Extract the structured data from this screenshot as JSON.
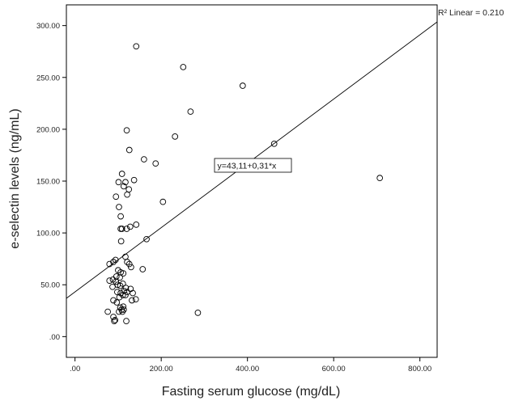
{
  "chart_data": {
    "type": "scatter",
    "title": "",
    "xlabel": "Fasting serum glucose (mg/dL)",
    "ylabel": "e-selectin levels (ng/mL)",
    "xlim": [
      -20,
      840
    ],
    "ylim": [
      -20,
      320
    ],
    "x_ticks": [
      0,
      200,
      400,
      600,
      800
    ],
    "x_tick_labels": [
      ".00",
      "200.00",
      "400.00",
      "600.00",
      "800.00"
    ],
    "y_ticks": [
      0,
      50,
      100,
      150,
      200,
      250,
      300
    ],
    "y_tick_labels": [
      ".00",
      "50.00",
      "100.00",
      "150.00",
      "200.00",
      "250.00",
      "300.00"
    ],
    "grid": false,
    "r2_label": "R² Linear = 0.210",
    "equation_label": "y=43,11+0,31*x",
    "fit_line": {
      "intercept": 43.11,
      "slope": 0.31
    },
    "points": [
      {
        "x": 142,
        "y": 280
      },
      {
        "x": 251,
        "y": 260
      },
      {
        "x": 389,
        "y": 242
      },
      {
        "x": 268,
        "y": 217
      },
      {
        "x": 120,
        "y": 199
      },
      {
        "x": 232,
        "y": 193
      },
      {
        "x": 462,
        "y": 186
      },
      {
        "x": 126,
        "y": 180
      },
      {
        "x": 160,
        "y": 171
      },
      {
        "x": 187,
        "y": 167
      },
      {
        "x": 109,
        "y": 157
      },
      {
        "x": 137,
        "y": 151
      },
      {
        "x": 101,
        "y": 149
      },
      {
        "x": 117,
        "y": 149
      },
      {
        "x": 707,
        "y": 153
      },
      {
        "x": 113,
        "y": 145
      },
      {
        "x": 125,
        "y": 142
      },
      {
        "x": 95,
        "y": 135
      },
      {
        "x": 121,
        "y": 137
      },
      {
        "x": 204,
        "y": 130
      },
      {
        "x": 102,
        "y": 125
      },
      {
        "x": 106,
        "y": 116
      },
      {
        "x": 142,
        "y": 108
      },
      {
        "x": 128,
        "y": 106
      },
      {
        "x": 120,
        "y": 104
      },
      {
        "x": 109,
        "y": 104
      },
      {
        "x": 106,
        "y": 104
      },
      {
        "x": 166,
        "y": 94
      },
      {
        "x": 107,
        "y": 92
      },
      {
        "x": 117,
        "y": 77
      },
      {
        "x": 94,
        "y": 74
      },
      {
        "x": 121,
        "y": 72
      },
      {
        "x": 89,
        "y": 72
      },
      {
        "x": 126,
        "y": 70
      },
      {
        "x": 80,
        "y": 70
      },
      {
        "x": 130,
        "y": 67
      },
      {
        "x": 157,
        "y": 65
      },
      {
        "x": 100,
        "y": 64
      },
      {
        "x": 106,
        "y": 62
      },
      {
        "x": 112,
        "y": 61
      },
      {
        "x": 96,
        "y": 58
      },
      {
        "x": 104,
        "y": 57
      },
      {
        "x": 88,
        "y": 55
      },
      {
        "x": 80,
        "y": 54
      },
      {
        "x": 95,
        "y": 53
      },
      {
        "x": 111,
        "y": 51
      },
      {
        "x": 99,
        "y": 50
      },
      {
        "x": 105,
        "y": 49
      },
      {
        "x": 87,
        "y": 48
      },
      {
        "x": 118,
        "y": 47
      },
      {
        "x": 129,
        "y": 46
      },
      {
        "x": 114,
        "y": 44
      },
      {
        "x": 98,
        "y": 43
      },
      {
        "x": 121,
        "y": 43
      },
      {
        "x": 106,
        "y": 42
      },
      {
        "x": 134,
        "y": 42
      },
      {
        "x": 111,
        "y": 40
      },
      {
        "x": 117,
        "y": 40
      },
      {
        "x": 103,
        "y": 38
      },
      {
        "x": 89,
        "y": 35
      },
      {
        "x": 132,
        "y": 35
      },
      {
        "x": 141,
        "y": 36
      },
      {
        "x": 97,
        "y": 33
      },
      {
        "x": 112,
        "y": 29
      },
      {
        "x": 105,
        "y": 28
      },
      {
        "x": 108,
        "y": 26
      },
      {
        "x": 113,
        "y": 26
      },
      {
        "x": 102,
        "y": 24
      },
      {
        "x": 110,
        "y": 24
      },
      {
        "x": 76,
        "y": 24
      },
      {
        "x": 285,
        "y": 23
      },
      {
        "x": 89,
        "y": 19
      },
      {
        "x": 93,
        "y": 16
      },
      {
        "x": 91,
        "y": 15
      },
      {
        "x": 119,
        "y": 15
      }
    ]
  }
}
